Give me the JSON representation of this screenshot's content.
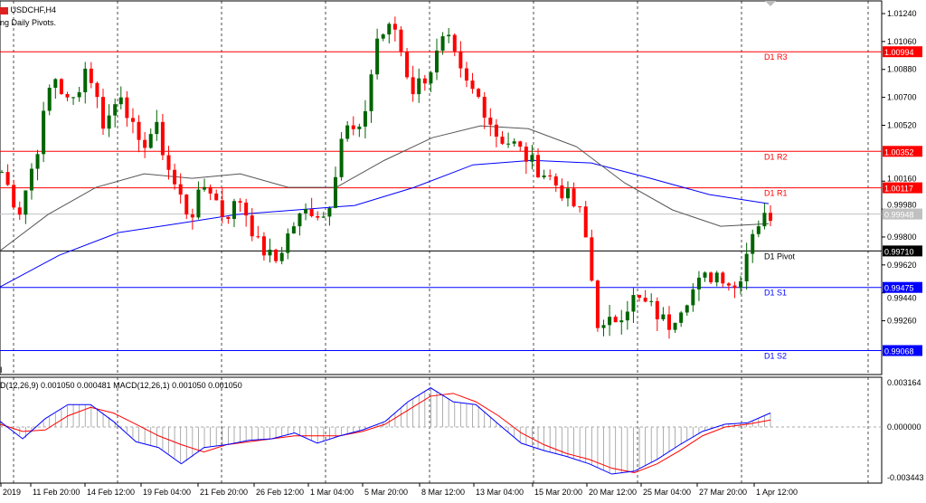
{
  "header": {
    "symbol": "USDCHF,H4",
    "indicator": "ng Daily Pivots."
  },
  "price_axis": {
    "ticks": [
      "1.01240",
      "1.01060",
      "1.00880",
      "1.00700",
      "1.00520",
      "1.00160",
      "0.99980",
      "0.99800",
      "0.99620",
      "0.99440",
      "0.99260"
    ],
    "tick_values": [
      1.0124,
      1.0106,
      1.0088,
      1.007,
      1.0052,
      1.0016,
      0.9998,
      0.998,
      0.9962,
      0.9944,
      0.9926
    ]
  },
  "pivots": [
    {
      "label": "D1 R3",
      "price": "1.00994",
      "value": 1.00994,
      "color": "#ff0000"
    },
    {
      "label": "D1 R2",
      "price": "1.00352",
      "value": 1.00352,
      "color": "#ff0000"
    },
    {
      "label": "D1 R1",
      "price": "1.00117",
      "value": 1.00117,
      "color": "#ff0000"
    },
    {
      "label": "D1 Pivot",
      "price": "0.99710",
      "value": 0.9971,
      "color": "#000000"
    },
    {
      "label": "D1 S1",
      "price": "0.99475",
      "value": 0.99475,
      "color": "#0000ff"
    },
    {
      "label": "D1 S2",
      "price": "0.99068",
      "value": 0.99068,
      "color": "#0000ff"
    }
  ],
  "bid": {
    "price": "0.99948",
    "value": 0.99948,
    "color": "#c0c0c0"
  },
  "macd": {
    "label": "D(12,26,9) 0.001050 0.000481 MACD(12,26,1) 0.001050 0.001050",
    "ticks": [
      "0.003164",
      "0.000000",
      "-0.003443"
    ],
    "macd_line": [
      0.0004,
      -0.0008,
      0.0006,
      0.0016,
      0.0016,
      0.0004,
      -0.001,
      -0.0014,
      -0.0025,
      -0.0014,
      -0.0012,
      -0.0009,
      -0.0008,
      -0.0004,
      -0.0011,
      -0.0006,
      -0.0002,
      0.0004,
      0.0018,
      0.0028,
      0.0018,
      0.0016,
      0.0002,
      -0.0011,
      -0.0016,
      -0.002,
      -0.0025,
      -0.0032,
      -0.003,
      -0.0022,
      -0.0012,
      -0.0003,
      0.0002,
      0.0003,
      0.001
    ],
    "signal_line": [
      0.0002,
      -0.0003,
      -0.0002,
      0.0008,
      0.0014,
      0.001,
      0.0002,
      -0.0006,
      -0.0012,
      -0.0017,
      -0.0012,
      -0.001,
      -0.0008,
      -0.0006,
      -0.0006,
      -0.0006,
      -0.0003,
      0.0002,
      0.0012,
      0.0022,
      0.0024,
      0.0018,
      0.0008,
      -0.0004,
      -0.0012,
      -0.0018,
      -0.0022,
      -0.0028,
      -0.0031,
      -0.0025,
      -0.0016,
      -0.0006,
      0.0,
      0.0002,
      0.0005
    ]
  },
  "time_axis": [
    "2019",
    "11 Feb 20:00",
    "14 Feb 12:00",
    "19 Feb 04:00",
    "21 Feb 20:00",
    "26 Feb 12:00",
    "1 Mar 04:00",
    "5 Mar 20:00",
    "8 Mar 12:00",
    "13 Mar 04:00",
    "15 Mar 20:00",
    "20 Mar 12:00",
    "25 Mar 04:00",
    "27 Mar 20:00",
    "1 Apr 12:00"
  ],
  "chart_data": {
    "type": "candlestick",
    "closes": [
      1.0022,
      0.99957,
      1.00336,
      1.00861,
      1.00628,
      1.00919,
      1.00511,
      1.00744,
      1.00366,
      1.00511,
      1.00161,
      0.99928,
      1.00161,
      0.99928,
      1.00045,
      0.99753,
      0.99637,
      0.9987,
      0.99986,
      0.99928,
      1.00511,
      1.00453,
      1.01094,
      1.01152,
      1.00744,
      1.00861,
      1.01094,
      1.00803,
      1.00686,
      1.00453,
      1.00394,
      1.00278,
      1.00191,
      1.00074,
      0.99928,
      0.9917,
      0.99287,
      0.99404,
      0.99345,
      0.99229,
      0.99404,
      0.9952,
      0.99579,
      0.99462,
      0.9987,
      0.99948
    ],
    "ma_slow": [
      0.99478,
      0.99682,
      0.99828,
      0.99886,
      0.99945,
      0.99974,
      1.00003,
      1.00119,
      1.00265,
      1.00294,
      1.00277,
      1.00178,
      1.00073,
      1.00015
    ],
    "ma_fast": [
      0.99711,
      0.99945,
      1.0012,
      1.00207,
      1.00178,
      1.00207,
      1.0012,
      1.0012,
      1.00294,
      1.0044,
      1.00516,
      1.00498,
      1.00382,
      1.00149,
      0.99974,
      0.99869,
      0.99886
    ],
    "up_color": "#006400",
    "down_color": "#ff0000"
  }
}
